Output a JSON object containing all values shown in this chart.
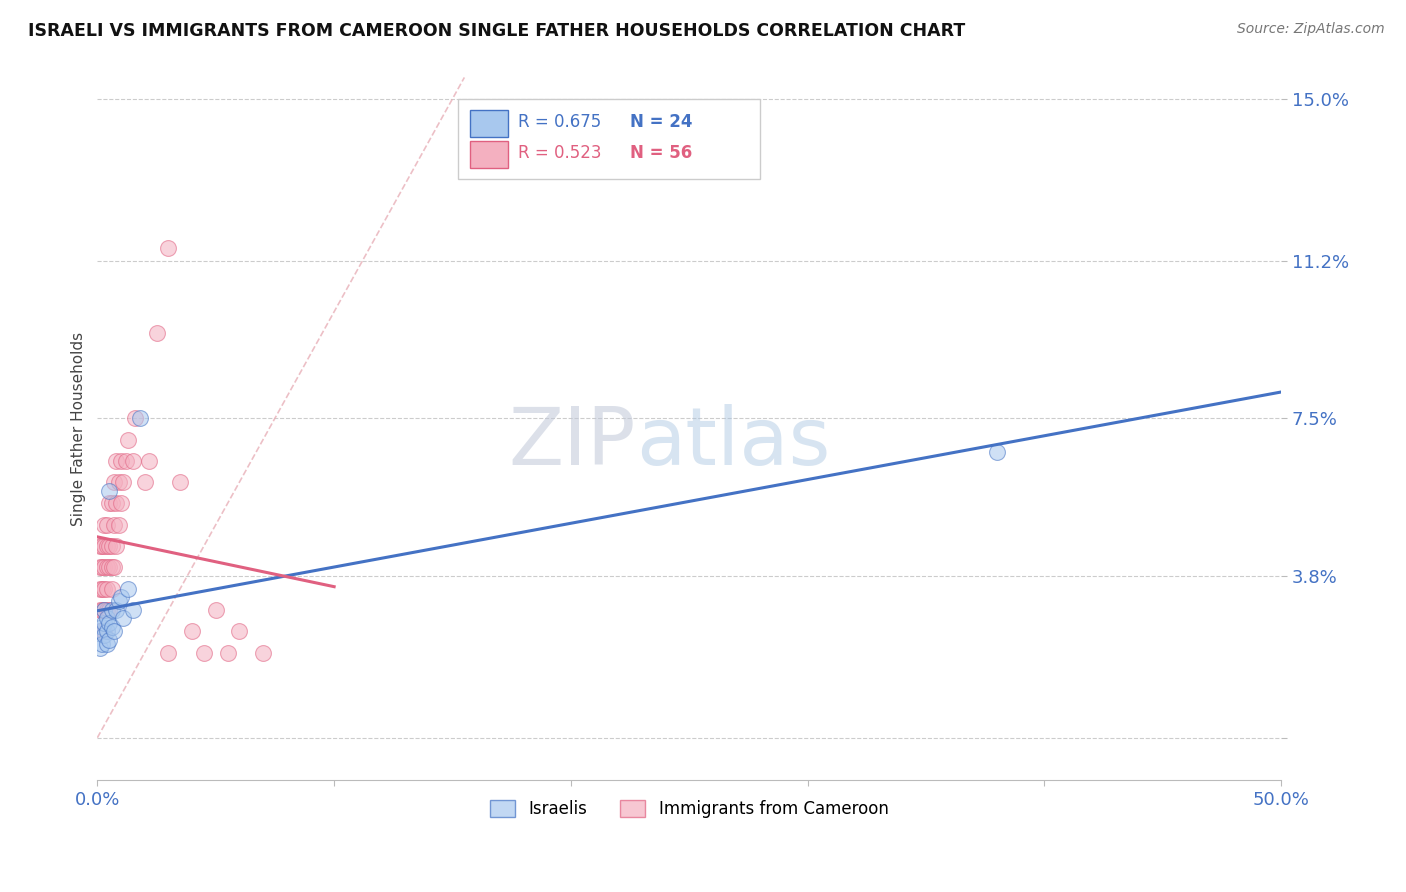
{
  "title": "ISRAELI VS IMMIGRANTS FROM CAMEROON SINGLE FATHER HOUSEHOLDS CORRELATION CHART",
  "source": "Source: ZipAtlas.com",
  "ylabel": "Single Father Households",
  "xlim": [
    0,
    0.5
  ],
  "ylim": [
    -0.01,
    0.155
  ],
  "ytick_positions": [
    0.0,
    0.038,
    0.075,
    0.112,
    0.15
  ],
  "ytick_labels": [
    "",
    "3.8%",
    "7.5%",
    "11.2%",
    "15.0%"
  ],
  "israeli_color": "#a8c8ee",
  "cameroon_color": "#f4b0c0",
  "israeli_line_color": "#4472c4",
  "cameroon_line_color": "#e06080",
  "legend_r_israeli": "R = 0.675",
  "legend_n_israeli": "N = 24",
  "legend_r_cameroon": "R = 0.523",
  "legend_n_cameroon": "N = 56",
  "watermark_zip": "ZIP",
  "watermark_atlas": "atlas",
  "israeli_x": [
    0.001,
    0.001,
    0.002,
    0.002,
    0.003,
    0.003,
    0.003,
    0.004,
    0.004,
    0.004,
    0.005,
    0.005,
    0.006,
    0.006,
    0.007,
    0.008,
    0.009,
    0.01,
    0.011,
    0.013,
    0.015,
    0.018,
    0.38,
    0.005
  ],
  "israeli_y": [
    0.021,
    0.025,
    0.022,
    0.026,
    0.024,
    0.027,
    0.03,
    0.025,
    0.028,
    0.022,
    0.027,
    0.023,
    0.026,
    0.03,
    0.025,
    0.03,
    0.032,
    0.033,
    0.028,
    0.035,
    0.03,
    0.075,
    0.067,
    0.058
  ],
  "cameroon_x": [
    0.001,
    0.001,
    0.001,
    0.001,
    0.001,
    0.002,
    0.002,
    0.002,
    0.002,
    0.002,
    0.003,
    0.003,
    0.003,
    0.003,
    0.003,
    0.003,
    0.004,
    0.004,
    0.004,
    0.004,
    0.004,
    0.005,
    0.005,
    0.005,
    0.005,
    0.006,
    0.006,
    0.006,
    0.006,
    0.007,
    0.007,
    0.007,
    0.008,
    0.008,
    0.008,
    0.009,
    0.009,
    0.01,
    0.01,
    0.011,
    0.012,
    0.013,
    0.015,
    0.016,
    0.02,
    0.022,
    0.025,
    0.03,
    0.035,
    0.04,
    0.05,
    0.06,
    0.07,
    0.03,
    0.045,
    0.055
  ],
  "cameroon_y": [
    0.025,
    0.03,
    0.035,
    0.04,
    0.045,
    0.025,
    0.03,
    0.035,
    0.04,
    0.045,
    0.025,
    0.03,
    0.035,
    0.04,
    0.045,
    0.05,
    0.03,
    0.035,
    0.04,
    0.045,
    0.05,
    0.03,
    0.04,
    0.045,
    0.055,
    0.035,
    0.04,
    0.045,
    0.055,
    0.04,
    0.05,
    0.06,
    0.045,
    0.055,
    0.065,
    0.05,
    0.06,
    0.055,
    0.065,
    0.06,
    0.065,
    0.07,
    0.065,
    0.075,
    0.06,
    0.065,
    0.095,
    0.115,
    0.06,
    0.025,
    0.03,
    0.025,
    0.02,
    0.02,
    0.02,
    0.02
  ]
}
